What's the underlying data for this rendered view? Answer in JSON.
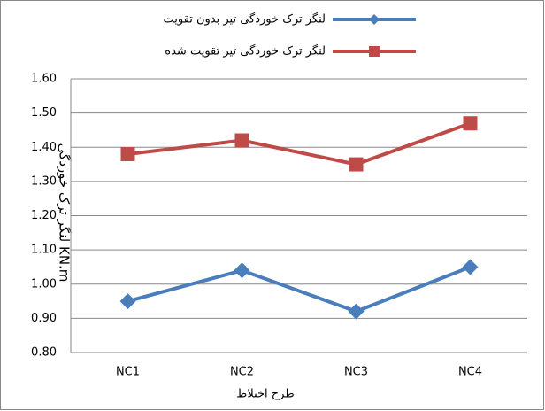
{
  "chart_data": {
    "type": "line",
    "categories": [
      "NC1",
      "NC2",
      "NC3",
      "NC4"
    ],
    "series": [
      {
        "name": "لنگر ترک خوردگی تیر بدون تقویت",
        "color": "#4a7ebb",
        "marker": "diamond",
        "values": [
          0.95,
          1.04,
          0.92,
          1.05
        ]
      },
      {
        "name": "لنگر ترک خوردگی تیر تقویت شده",
        "color": "#be4b48",
        "marker": "square",
        "values": [
          1.38,
          1.42,
          1.35,
          1.47
        ]
      }
    ],
    "ylim": [
      0.8,
      1.6
    ],
    "yticks": [
      {
        "value": 0.8,
        "label": "0.80"
      },
      {
        "value": 0.9,
        "label": "0.90"
      },
      {
        "value": 1.0,
        "label": "1.00"
      },
      {
        "value": 1.1,
        "label": "1.10"
      },
      {
        "value": 1.2,
        "label": "1.20"
      },
      {
        "value": 1.3,
        "label": "1.30"
      },
      {
        "value": 1.4,
        "label": "1.40"
      },
      {
        "value": 1.5,
        "label": "1.50"
      },
      {
        "value": 1.6,
        "label": "1.60"
      }
    ],
    "ylabel": "لنگر ترک خوردگی KN.m",
    "xlabel": "طرح اختلاط",
    "grid": true,
    "legend": "top"
  }
}
